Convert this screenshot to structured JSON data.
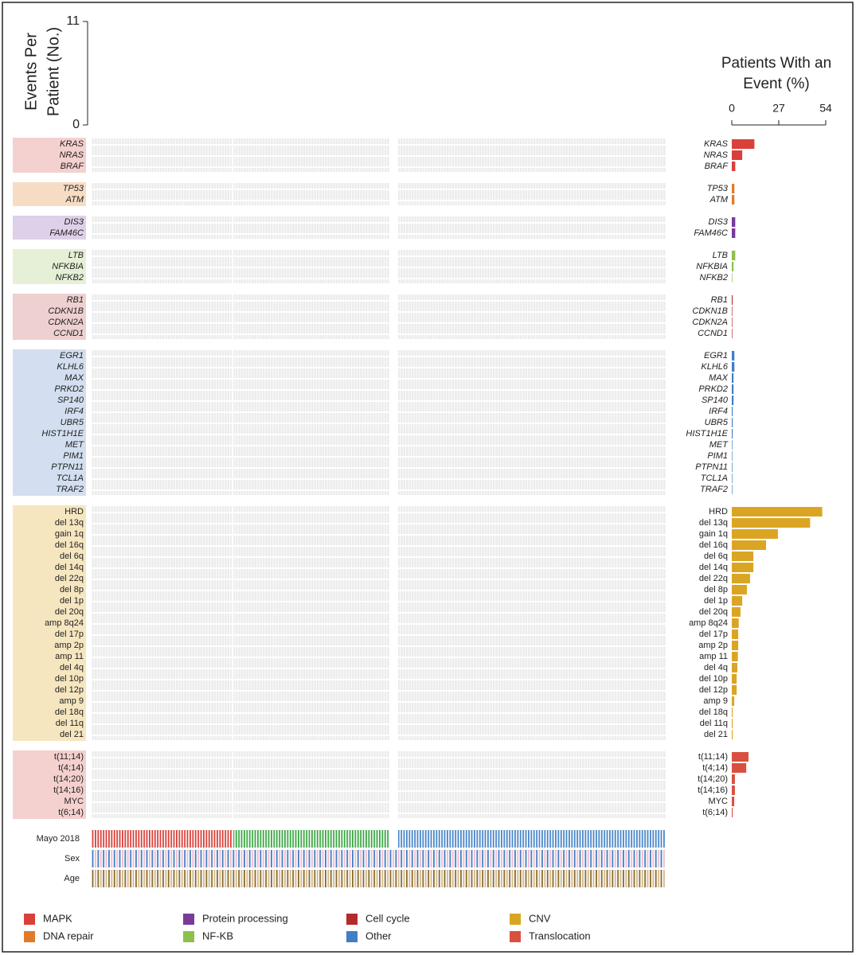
{
  "chart_data": {
    "type": "bar",
    "y_axis_label": [
      "Events Per",
      "Patient (No.)"
    ],
    "ylim": [
      0,
      11
    ],
    "yticks": [
      0,
      11
    ],
    "x_axis_label": [
      "Patients With an",
      "Event (%)"
    ],
    "xlim": [
      0,
      54
    ],
    "xticks": [
      0,
      27,
      54
    ],
    "groups": [
      {
        "color": "#d9403a",
        "background": "#f4d0cf",
        "italic": true,
        "rows": [
          {
            "name": "KRAS",
            "value": 13
          },
          {
            "name": "NRAS",
            "value": 6
          },
          {
            "name": "BRAF",
            "value": 2
          }
        ]
      },
      {
        "color": "#e07b2a",
        "background": "#f7dcc4",
        "italic": true,
        "rows": [
          {
            "name": "TP53",
            "value": 1.5
          },
          {
            "name": "ATM",
            "value": 1.5
          }
        ]
      },
      {
        "color": "#7a3a9a",
        "background": "#ddd0e8",
        "italic": true,
        "rows": [
          {
            "name": "DIS3",
            "value": 2
          },
          {
            "name": "FAM46C",
            "value": 2
          }
        ]
      },
      {
        "color": "#8dc04a",
        "background": "#e5f0d6",
        "italic": true,
        "rows": [
          {
            "name": "LTB",
            "value": 2
          },
          {
            "name": "NFKBIA",
            "value": 1
          },
          {
            "name": "NFKB2",
            "value": 0.3
          }
        ]
      },
      {
        "color": "#b52a2a",
        "background": "#eed0d0",
        "italic": true,
        "rows": [
          {
            "name": "RB1",
            "value": 0.5
          },
          {
            "name": "CDKN1B",
            "value": 0.3
          },
          {
            "name": "CDKN2A",
            "value": 0.3
          },
          {
            "name": "CCND1",
            "value": 0.3
          }
        ]
      },
      {
        "color": "#3f7fc4",
        "background": "#d3dff0",
        "italic": true,
        "rows": [
          {
            "name": "EGR1",
            "value": 1.5
          },
          {
            "name": "KLHL6",
            "value": 1.5
          },
          {
            "name": "MAX",
            "value": 1
          },
          {
            "name": "PRKD2",
            "value": 1
          },
          {
            "name": "SP140",
            "value": 1
          },
          {
            "name": "IRF4",
            "value": 0.5
          },
          {
            "name": "UBR5",
            "value": 0.5
          },
          {
            "name": "HIST1H1E",
            "value": 0.5
          },
          {
            "name": "MET",
            "value": 0.3
          },
          {
            "name": "PIM1",
            "value": 0.3
          },
          {
            "name": "PTPN11",
            "value": 0.3
          },
          {
            "name": "TCL1A",
            "value": 0.3
          },
          {
            "name": "TRAF2",
            "value": 0.3
          }
        ]
      },
      {
        "color": "#dba524",
        "background": "#f6e6c0",
        "italic": false,
        "rows": [
          {
            "name": "HRD",
            "value": 52
          },
          {
            "name": "del 13q",
            "value": 45
          },
          {
            "name": "gain 1q",
            "value": 26.5
          },
          {
            "name": "del 16q",
            "value": 19.7
          },
          {
            "name": "del 6q",
            "value": 12.4
          },
          {
            "name": "del 14q",
            "value": 12.4
          },
          {
            "name": "del 22q",
            "value": 10.5
          },
          {
            "name": "del 8p",
            "value": 8.7
          },
          {
            "name": "del 1p",
            "value": 6
          },
          {
            "name": "del 20q",
            "value": 5
          },
          {
            "name": "amp 8q24",
            "value": 4
          },
          {
            "name": "del 17p",
            "value": 3.7
          },
          {
            "name": "amp 2p",
            "value": 3.7
          },
          {
            "name": "amp 11",
            "value": 3.5
          },
          {
            "name": "del 4q",
            "value": 3.2
          },
          {
            "name": "del 10p",
            "value": 2.8
          },
          {
            "name": "del 12p",
            "value": 2.8
          },
          {
            "name": "amp 9",
            "value": 1.4
          },
          {
            "name": "del 18q",
            "value": 0.5
          },
          {
            "name": "del 11q",
            "value": 0.5
          },
          {
            "name": "del 21",
            "value": 0.5
          }
        ]
      },
      {
        "color": "#d9503f",
        "background": "#f4d0cf",
        "italic": false,
        "rows": [
          {
            "name": "t(11;14)",
            "value": 9.6
          },
          {
            "name": "t(4;14)",
            "value": 8.3
          },
          {
            "name": "t(14;20)",
            "value": 1.8
          },
          {
            "name": "t(14;16)",
            "value": 1.8
          },
          {
            "name": "MYC",
            "value": 1.4
          },
          {
            "name": "t(6;14)",
            "value": 0.5
          }
        ]
      }
    ],
    "annotations": [
      "Mayo 2018",
      "Sex",
      "Age"
    ],
    "legend": [
      {
        "name": "MAPK",
        "color": "#d9403a"
      },
      {
        "name": "DNA repair",
        "color": "#e07b2a"
      },
      {
        "name": "Protein processing",
        "color": "#7a3a9a"
      },
      {
        "name": "NF-KB",
        "color": "#8dc04a"
      },
      {
        "name": "Cell cycle",
        "color": "#b52a2a"
      },
      {
        "name": "Other",
        "color": "#3f7fc4"
      },
      {
        "name": "CNV",
        "color": "#dba524"
      },
      {
        "name": "Translocation",
        "color": "#d9503f"
      }
    ]
  }
}
